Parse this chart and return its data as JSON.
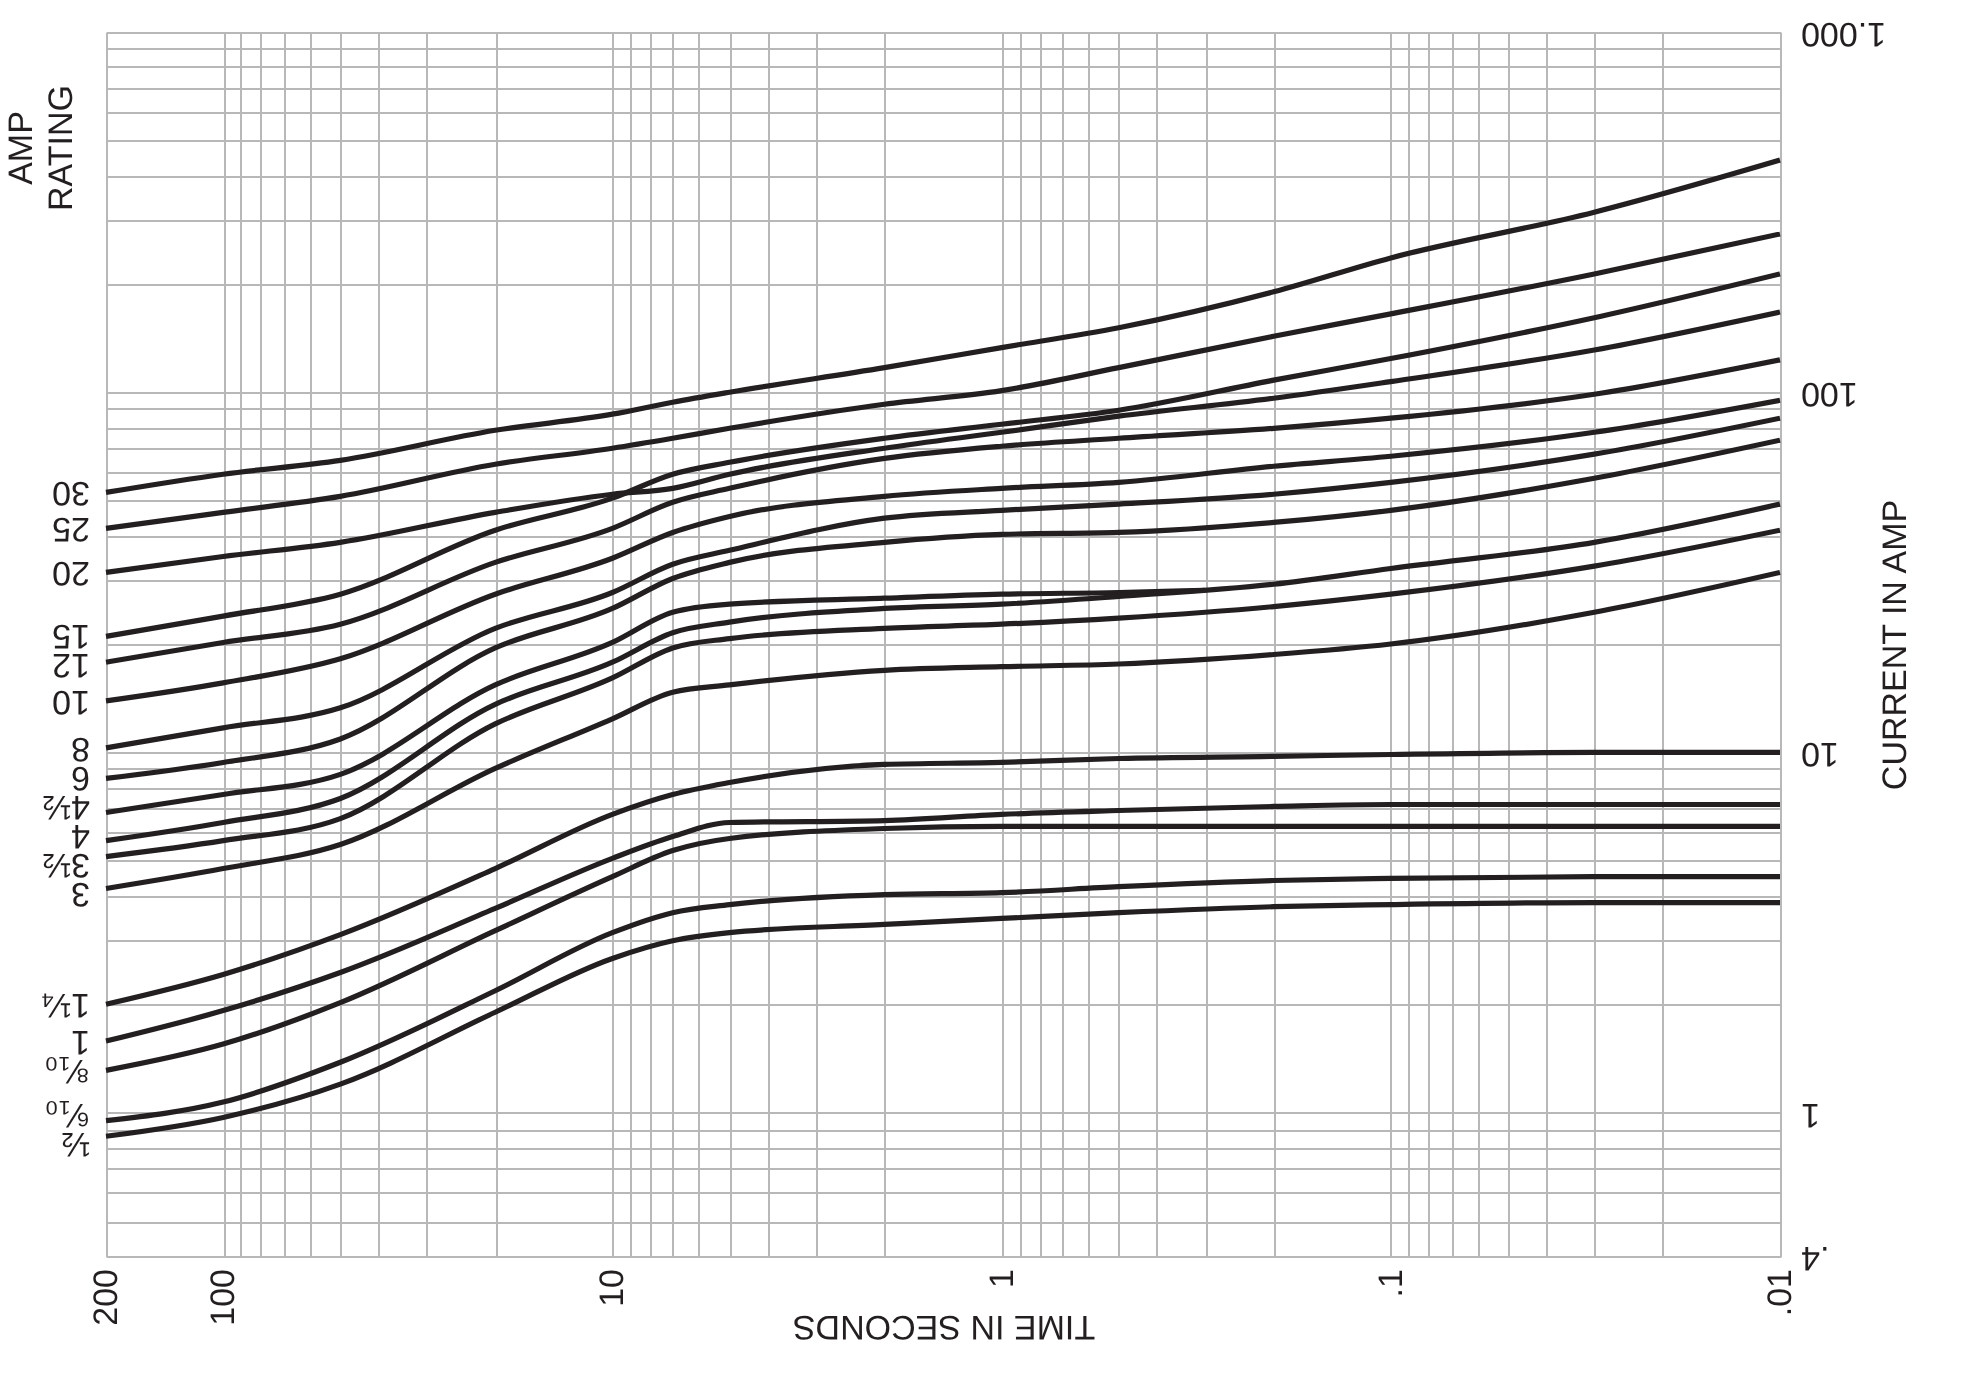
{
  "chart_data": {
    "type": "line",
    "xlabel": "TIME IN SECONDS",
    "ylabel": "CURRENT IN AMP",
    "legend_title": "AMP RATING",
    "log": "xy",
    "grid": true,
    "xlim": [
      200,
      0.01
    ],
    "ylim": [
      0.4,
      1000
    ],
    "xticks": [
      200,
      100,
      {
        "value": 90,
        "label": null
      },
      {
        "value": 80,
        "label": null
      },
      {
        "value": 70,
        "label": null
      },
      {
        "value": 60,
        "label": null
      },
      {
        "value": 50,
        "label": null
      },
      {
        "value": 40,
        "label": null
      },
      {
        "value": 30,
        "label": null
      },
      {
        "value": 20,
        "label": null
      },
      10,
      {
        "value": 9,
        "label": null
      },
      {
        "value": 8,
        "label": null
      },
      {
        "value": 7,
        "label": null
      },
      {
        "value": 6,
        "label": null
      },
      {
        "value": 5,
        "label": null
      },
      {
        "value": 4,
        "label": null
      },
      {
        "value": 3,
        "label": null
      },
      {
        "value": 2,
        "label": null
      },
      1,
      {
        "value": 0.9,
        "label": null
      },
      {
        "value": 0.8,
        "label": null
      },
      {
        "value": 0.7,
        "label": null
      },
      {
        "value": 0.6,
        "label": null
      },
      {
        "value": 0.5,
        "label": null
      },
      {
        "value": 0.4,
        "label": null
      },
      {
        "value": 0.3,
        "label": null
      },
      {
        "value": 0.2,
        "label": null
      },
      {
        "value": 0.1,
        "label": ".1"
      },
      {
        "value": 0.09,
        "label": null
      },
      {
        "value": 0.08,
        "label": null
      },
      {
        "value": 0.07,
        "label": null
      },
      {
        "value": 0.06,
        "label": null
      },
      {
        "value": 0.05,
        "label": null
      },
      {
        "value": 0.04,
        "label": null
      },
      {
        "value": 0.03,
        "label": null
      },
      {
        "value": 0.02,
        "label": null
      },
      {
        "value": 0.01,
        "label": ".01"
      }
    ],
    "yticks": [
      {
        "value": 0.4,
        "label": ".4"
      },
      {
        "value": 0.5,
        "label": null
      },
      {
        "value": 0.6,
        "label": null
      },
      {
        "value": 0.7,
        "label": null
      },
      {
        "value": 0.8,
        "label": null
      },
      {
        "value": 0.9,
        "label": null
      },
      1,
      {
        "value": 2,
        "label": null
      },
      {
        "value": 3,
        "label": null
      },
      {
        "value": 4,
        "label": null
      },
      {
        "value": 5,
        "label": null
      },
      {
        "value": 6,
        "label": null
      },
      {
        "value": 7,
        "label": null
      },
      {
        "value": 8,
        "label": null
      },
      {
        "value": 9,
        "label": null
      },
      10,
      {
        "value": 20,
        "label": null
      },
      {
        "value": 30,
        "label": null
      },
      {
        "value": 40,
        "label": null
      },
      {
        "value": 50,
        "label": null
      },
      {
        "value": 60,
        "label": null
      },
      {
        "value": 70,
        "label": null
      },
      {
        "value": 80,
        "label": null
      },
      {
        "value": 90,
        "label": null
      },
      100,
      {
        "value": 200,
        "label": null
      },
      {
        "value": 300,
        "label": null
      },
      {
        "value": 400,
        "label": null
      },
      {
        "value": 500,
        "label": null
      },
      {
        "value": 600,
        "label": null
      },
      {
        "value": 700,
        "label": null
      },
      {
        "value": 800,
        "label": null
      },
      {
        "value": 900,
        "label": null
      },
      {
        "value": 1000,
        "label": "1.000"
      }
    ],
    "x": [
      200,
      100,
      50,
      20,
      10,
      7,
      5,
      2,
      1,
      0.5,
      0.2,
      0.1,
      0.03,
      0.01
    ],
    "series": [
      {
        "name": "30",
        "color": "#231f20",
        "values": [
          52.7,
          59.2,
          64.7,
          78.4,
          86.9,
          93.8,
          100,
          117,
          133,
          151,
          190,
          236,
          316,
          441
        ]
      },
      {
        "name": "25",
        "color": "#231f20",
        "values": [
          41.9,
          46.4,
          51.4,
          63.1,
          69.9,
          74.5,
          79.4,
          92.6,
          101,
          117,
          143,
          165,
          213,
          275
        ]
      },
      {
        "name": "20",
        "color": "#231f20",
        "values": [
          31.6,
          35.0,
          38.3,
          46.4,
          52.1,
          54.1,
          59.2,
          69.9,
          77.4,
          85.8,
          96.2,
          107,
          131,
          167
        ]
      },
      {
        "name": "15",
        "color": "#231f20",
        "values": [
          21.0,
          23.9,
          27.5,
          41.4,
          50.8,
          59.2,
          63.9,
          74.5,
          81.5,
          89.1,
          108,
          124,
          161,
          213
        ]
      },
      {
        "name": "12",
        "color": "#231f20",
        "values": [
          17.8,
          20.2,
          22.7,
          33.7,
          41.9,
          49.5,
          54.1,
          65.5,
          70.8,
          74.5,
          79.4,
          84.7,
          98.7,
          123
        ]
      },
      {
        "name": "10",
        "color": "#231f20",
        "values": [
          13.9,
          15.6,
          18.2,
          27.5,
          34.6,
          40.8,
          45.2,
          51.4,
          54.1,
          56.2,
          62.3,
          66.4,
          77.4,
          95.0
        ]
      },
      {
        "name": "8",
        "color": "#231f20",
        "values": [
          10.3,
          11.7,
          13.3,
          22.1,
          27.8,
          33.3,
          36.4,
          44.7,
          47.0,
          48.9,
          52.1,
          56.2,
          67.3,
          84.7
        ]
      },
      {
        "name": "6",
        "color": "#231f20",
        "values": [
          8.47,
          9.38,
          10.9,
          19.5,
          25.1,
          30.4,
          33.7,
          38.3,
          40.3,
          40.8,
          43.5,
          47.0,
          57.7,
          73.6
        ]
      },
      {
        "name": "4½",
        "color": "#231f20",
        "x": [
          200,
          100,
          50,
          20,
          10,
          7,
          5,
          2,
          1,
          0.5,
          0.3
        ],
        "values": [
          6.81,
          7.64,
          8.69,
          15.4,
          20.2,
          24.5,
          25.8,
          26.8,
          27.5,
          27.8,
          28.2
        ]
      },
      {
        "name": "4",
        "color": "#231f20",
        "values": [
          5.69,
          6.39,
          7.45,
          13.6,
          17.8,
          21.5,
          23.0,
          25.1,
          25.8,
          27.1,
          29.3,
          32.4,
          38.3,
          48.9
        ]
      },
      {
        "name": "3½",
        "color": "#231f20",
        "values": [
          5.14,
          5.69,
          6.55,
          12.0,
          16.1,
          19.5,
          20.7,
          22.1,
          22.7,
          23.6,
          25.4,
          27.5,
          32.9,
          41.4
        ]
      },
      {
        "name": "3",
        "color": "#231f20",
        "values": [
          4.19,
          4.76,
          5.55,
          9.03,
          12.4,
          14.7,
          15.4,
          16.9,
          17.3,
          17.6,
          18.7,
          20.0,
          24.5,
          31.6
        ]
      },
      {
        "name": "1¼",
        "color": "#231f20",
        "values": [
          2.0,
          2.42,
          3.12,
          4.76,
          6.73,
          7.64,
          8.25,
          9.26,
          9.38,
          9.62,
          9.75,
          9.87,
          10.0,
          10.0
        ]
      },
      {
        "name": "1",
        "color": "#231f20",
        "values": [
          1.58,
          1.92,
          2.45,
          3.69,
          5.08,
          5.84,
          6.39,
          6.47,
          6.73,
          6.9,
          7.08,
          7.17,
          7.17,
          7.17
        ]
      },
      {
        "name": "⁸⁄₁₀",
        "color": "#231f20",
        "values": [
          1.31,
          1.55,
          2.02,
          3.2,
          4.52,
          5.34,
          5.77,
          6.15,
          6.23,
          6.23,
          6.23,
          6.23,
          6.23,
          6.23
        ]
      },
      {
        "name": "⁶⁄₁₀",
        "color": "#231f20",
        "values": [
          0.95,
          1.07,
          1.38,
          2.18,
          3.16,
          3.59,
          3.78,
          4.03,
          4.08,
          4.24,
          4.41,
          4.47,
          4.52,
          4.52
        ]
      },
      {
        "name": "½",
        "color": "#231f20",
        "values": [
          0.86,
          0.97,
          1.2,
          1.9,
          2.68,
          3.0,
          3.16,
          3.33,
          3.46,
          3.59,
          3.73,
          3.78,
          3.83,
          3.83
        ]
      }
    ]
  }
}
